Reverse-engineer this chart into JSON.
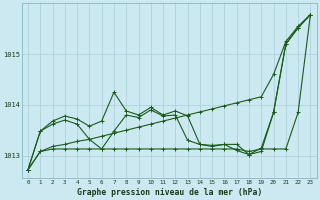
{
  "background_color": "#cce8f0",
  "grid_color": "#aaccd8",
  "line_color": "#1a5c1a",
  "title": "Graphe pression niveau de la mer (hPa)",
  "xlim": [
    -0.5,
    23.5
  ],
  "ylim": [
    1012.55,
    1016.0
  ],
  "yticks": [
    1013,
    1014,
    1015
  ],
  "xticks": [
    0,
    1,
    2,
    3,
    4,
    5,
    6,
    7,
    8,
    9,
    10,
    11,
    12,
    13,
    14,
    15,
    16,
    17,
    18,
    19,
    20,
    21,
    22,
    23
  ],
  "series": [
    [
      1012.72,
      1013.08,
      1013.18,
      1013.22,
      1013.28,
      1013.32,
      1013.38,
      1013.44,
      1013.5,
      1013.56,
      1013.62,
      1013.68,
      1013.74,
      1013.8,
      1013.86,
      1013.92,
      1013.98,
      1014.04,
      1014.1,
      1014.16,
      1014.6,
      1015.25,
      1015.55,
      1015.78
    ],
    [
      1012.72,
      1013.08,
      1013.13,
      1013.13,
      1013.13,
      1013.13,
      1013.13,
      1013.13,
      1013.13,
      1013.13,
      1013.13,
      1013.13,
      1013.13,
      1013.13,
      1013.13,
      1013.13,
      1013.13,
      1013.13,
      1013.08,
      1013.13,
      1013.13,
      1013.13,
      1013.85,
      1015.78
    ],
    [
      1012.72,
      1013.48,
      1013.62,
      1013.7,
      1013.62,
      1013.32,
      1013.13,
      1013.48,
      1013.8,
      1013.75,
      1013.9,
      1013.78,
      1013.8,
      1013.3,
      1013.22,
      1013.18,
      1013.22,
      1013.1,
      1013.02,
      1013.08,
      1013.85,
      1015.2,
      1015.52,
      1015.78
    ],
    [
      1012.72,
      1013.48,
      1013.68,
      1013.78,
      1013.72,
      1013.58,
      1013.68,
      1014.25,
      1013.88,
      1013.8,
      1013.95,
      1013.8,
      1013.88,
      1013.78,
      1013.22,
      1013.2,
      1013.22,
      1013.22,
      1013.02,
      1013.15,
      1013.85,
      1015.2,
      1015.52,
      1015.78
    ]
  ]
}
